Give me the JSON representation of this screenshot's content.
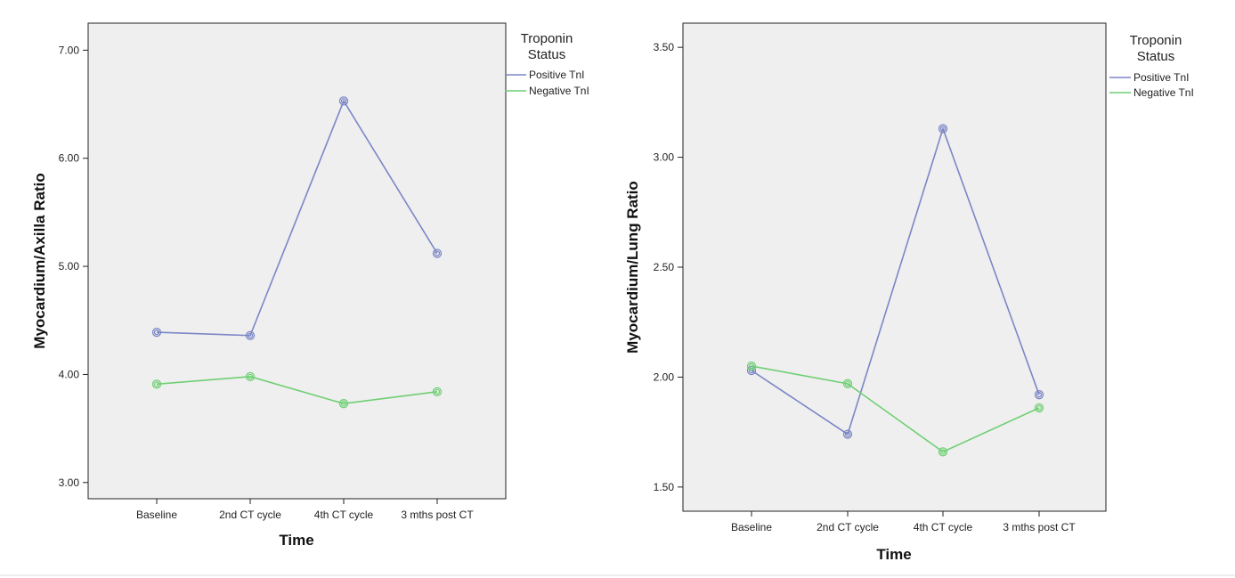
{
  "chart_data": [
    {
      "type": "line",
      "title": "",
      "xlabel": "Time",
      "ylabel": "Myocardium/Axilla Ratio",
      "categories": [
        "Baseline",
        "2nd CT cycle",
        "4th CT cycle",
        "3 mths post CT"
      ],
      "ylim": [
        2.85,
        7.25
      ],
      "yticks": [
        "3.00",
        "4.00",
        "5.00",
        "6.00",
        "7.00"
      ],
      "legend": {
        "title_line1": "Troponin",
        "title_line2": "Status",
        "placement": "top-right outside"
      },
      "series": [
        {
          "name": "Positive TnI",
          "color": "#7b86c6",
          "values": [
            4.39,
            4.36,
            6.53,
            5.12
          ]
        },
        {
          "name": "Negative TnI",
          "color": "#6fcf73",
          "values": [
            3.91,
            3.98,
            3.73,
            3.84
          ]
        }
      ],
      "grid": false
    },
    {
      "type": "line",
      "title": "",
      "xlabel": "Time",
      "ylabel": "Myocardium/Lung Ratio",
      "categories": [
        "Baseline",
        "2nd CT cycle",
        "4th CT cycle",
        "3 mths post CT"
      ],
      "ylim": [
        1.39,
        3.61
      ],
      "yticks": [
        "1.50",
        "2.00",
        "2.50",
        "3.00",
        "3.50"
      ],
      "legend": {
        "title_line1": "Troponin",
        "title_line2": "Status",
        "placement": "top-right outside"
      },
      "series": [
        {
          "name": "Positive TnI",
          "color": "#7b86c6",
          "values": [
            2.03,
            1.74,
            3.13,
            1.92
          ]
        },
        {
          "name": "Negative TnI",
          "color": "#6fcf73",
          "values": [
            2.05,
            1.97,
            1.66,
            1.86
          ]
        }
      ],
      "grid": false
    }
  ]
}
